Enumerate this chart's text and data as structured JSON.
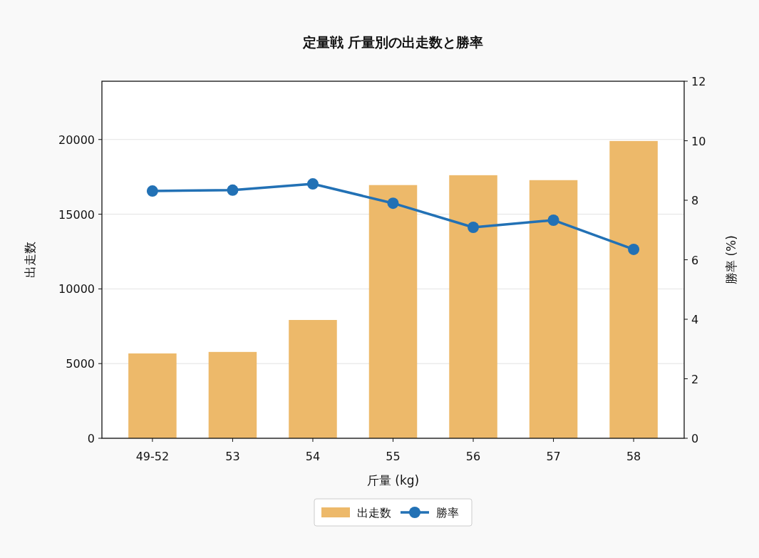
{
  "chart_data": {
    "type": "bar",
    "title": "定量戦 斤量別の出走数と勝率",
    "xlabel": "斤量 (kg)",
    "ylabel": "出走数",
    "y2label": "勝率 (%)",
    "categories": [
      "49-52",
      "53",
      "54",
      "55",
      "56",
      "57",
      "58"
    ],
    "series": [
      {
        "name": "出走数",
        "color": "#edb96a",
        "values": [
          5680,
          5780,
          7920,
          16950,
          17610,
          17280,
          19900
        ]
      },
      {
        "name": "勝率",
        "type": "line",
        "axis": "y2",
        "color": "#2271b5",
        "marker": "circle",
        "line_style": "solid",
        "values": [
          8.31,
          8.34,
          8.55,
          7.9,
          7.09,
          7.33,
          6.35
        ]
      }
    ],
    "ylim": [
      0,
      23900
    ],
    "yticks": [
      0,
      5000,
      10000,
      15000,
      20000
    ],
    "y2lim": [
      0,
      12
    ],
    "y2ticks": [
      0,
      2,
      4,
      6,
      8,
      10,
      12
    ],
    "grid": "y",
    "legend": "bottom"
  }
}
